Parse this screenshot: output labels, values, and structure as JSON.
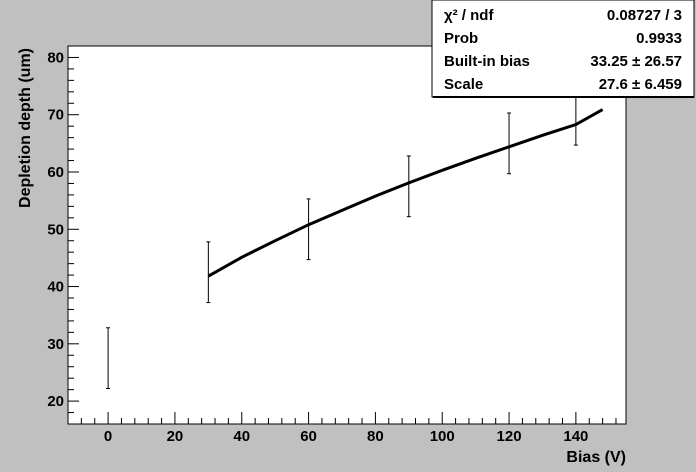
{
  "chart_data": {
    "type": "scatter",
    "xlabel": "Bias (V)",
    "ylabel": "Depletion depth (um)",
    "xlim": [
      -12,
      155
    ],
    "ylim": [
      16,
      82
    ],
    "x_ticks": [
      0,
      20,
      40,
      60,
      80,
      100,
      120,
      140
    ],
    "y_ticks": [
      20,
      30,
      40,
      50,
      60,
      70,
      80
    ],
    "grid": false,
    "points": [
      {
        "x": 0,
        "y": 27.5,
        "err": 5.3
      },
      {
        "x": 30,
        "y": 42.5,
        "err": 5.3
      },
      {
        "x": 60,
        "y": 50.0,
        "err": 5.3
      },
      {
        "x": 90,
        "y": 57.5,
        "err": 5.3
      },
      {
        "x": 120,
        "y": 65.0,
        "err": 5.3
      },
      {
        "x": 140,
        "y": 70.0,
        "err": 5.3
      }
    ],
    "fit_line": {
      "x": [
        30,
        40,
        50,
        60,
        70,
        80,
        90,
        100,
        110,
        120,
        130,
        140,
        148
      ],
      "y": [
        41.8,
        45.1,
        48.0,
        50.8,
        53.3,
        55.8,
        58.1,
        60.3,
        62.4,
        64.4,
        66.4,
        68.3,
        70.9
      ]
    },
    "stats_box": {
      "rows": [
        {
          "label": "χ² / ndf",
          "value": "0.08727 / 3"
        },
        {
          "label": "Prob",
          "value": "0.9933"
        },
        {
          "label": "Built-in bias",
          "value": "33.25 ± 26.57"
        },
        {
          "label": "Scale",
          "value": "27.6 ± 6.459"
        }
      ]
    },
    "colors": {
      "canvas": "#c0c0c0",
      "plot_area": "#ffffff",
      "stats_box": "#ffffff",
      "data": "#000000"
    }
  }
}
